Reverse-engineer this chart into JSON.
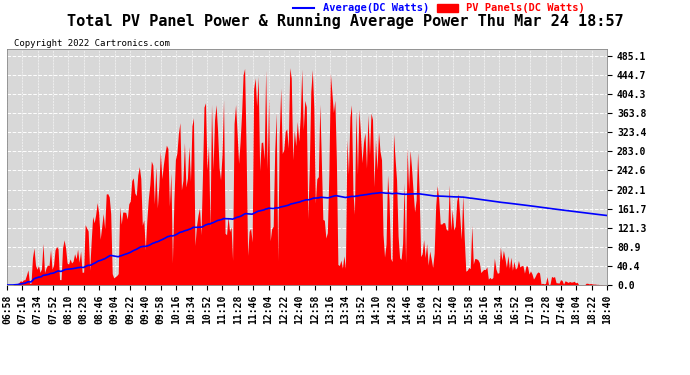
{
  "title": "Total PV Panel Power & Running Average Power Thu Mar 24 18:57",
  "copyright": "Copyright 2022 Cartronics.com",
  "legend_avg": "Average(DC Watts)",
  "legend_pv": "PV Panels(DC Watts)",
  "background_color": "#ffffff",
  "plot_bg_color": "#d8d8d8",
  "grid_color": "#ffffff",
  "fill_color": "#ff0000",
  "avg_line_color": "#0000ff",
  "yticks": [
    0.0,
    40.4,
    80.9,
    121.3,
    161.7,
    202.1,
    242.6,
    283.0,
    323.4,
    363.8,
    404.3,
    444.7,
    485.1
  ],
  "ymax": 500,
  "title_fontsize": 11,
  "tick_fontsize": 7,
  "time_labels": [
    "06:58",
    "07:16",
    "07:34",
    "07:52",
    "08:10",
    "08:28",
    "08:46",
    "09:04",
    "09:22",
    "09:40",
    "09:58",
    "10:16",
    "10:34",
    "10:52",
    "11:10",
    "11:28",
    "11:46",
    "12:04",
    "12:22",
    "12:40",
    "12:58",
    "13:16",
    "13:34",
    "13:52",
    "14:10",
    "14:28",
    "14:46",
    "15:04",
    "15:22",
    "15:40",
    "15:58",
    "16:16",
    "16:34",
    "16:52",
    "17:10",
    "17:28",
    "17:46",
    "18:04",
    "18:22",
    "18:40"
  ]
}
